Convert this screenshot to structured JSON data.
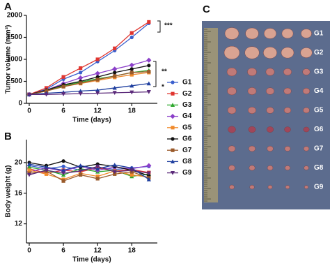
{
  "chart_data": [
    {
      "type": "line",
      "panel": "A",
      "xlabel": "Time (days)",
      "ylabel": "Tumor volume (mm³)",
      "x": [
        0,
        3,
        6,
        9,
        12,
        15,
        18,
        21
      ],
      "xlim": [
        0,
        22
      ],
      "xticks": [
        0,
        6,
        12,
        18
      ],
      "ylim": [
        0,
        2000
      ],
      "yticks": [
        0,
        500,
        1000,
        1500,
        2000
      ],
      "legend": "right",
      "annotations": [
        "***",
        "**",
        "*"
      ],
      "series": [
        {
          "name": "G1",
          "color": "#3a5fcd",
          "marker": "circle",
          "values": [
            200,
            320,
            550,
            700,
            950,
            1200,
            1500,
            1820
          ]
        },
        {
          "name": "G2",
          "color": "#e0352f",
          "marker": "square",
          "values": [
            200,
            350,
            600,
            800,
            1000,
            1250,
            1600,
            1850
          ]
        },
        {
          "name": "G3",
          "color": "#2ea82e",
          "marker": "triangle",
          "values": [
            200,
            280,
            400,
            480,
            560,
            620,
            700,
            750
          ]
        },
        {
          "name": "G4",
          "color": "#8b3fc9",
          "marker": "diamond",
          "values": [
            200,
            300,
            450,
            580,
            680,
            780,
            870,
            980
          ]
        },
        {
          "name": "G5",
          "color": "#f08a2c",
          "marker": "square",
          "values": [
            200,
            280,
            380,
            450,
            520,
            590,
            650,
            700
          ]
        },
        {
          "name": "G6",
          "color": "#111111",
          "marker": "circle",
          "values": [
            200,
            300,
            420,
            500,
            600,
            700,
            780,
            860
          ]
        },
        {
          "name": "G7",
          "color": "#9a5a2a",
          "marker": "square",
          "values": [
            200,
            280,
            380,
            460,
            540,
            620,
            700,
            720
          ]
        },
        {
          "name": "G8",
          "color": "#1f3f9f",
          "marker": "triangle",
          "values": [
            200,
            230,
            250,
            280,
            300,
            350,
            400,
            450
          ]
        },
        {
          "name": "G9",
          "color": "#5b2a7a",
          "marker": "triangle-down",
          "values": [
            200,
            200,
            210,
            220,
            230,
            240,
            250,
            260
          ]
        }
      ]
    },
    {
      "type": "line",
      "panel": "B",
      "xlabel": "Time (days)",
      "ylabel": "Body weight (g)",
      "x": [
        0,
        3,
        6,
        9,
        12,
        15,
        18,
        21
      ],
      "xlim": [
        0,
        22
      ],
      "xticks": [
        0,
        6,
        12,
        18
      ],
      "ylim": [
        9.5,
        23
      ],
      "yticks": [
        12,
        16,
        20
      ],
      "series": [
        {
          "color": "#3a5fcd",
          "marker": "circle",
          "values": [
            19.6,
            19.2,
            19.5,
            19.0,
            19.4,
            19.1,
            19.3,
            19.5
          ]
        },
        {
          "color": "#e0352f",
          "marker": "square",
          "values": [
            19.2,
            18.6,
            19.0,
            18.8,
            19.3,
            18.9,
            19.1,
            18.7
          ]
        },
        {
          "color": "#2ea82e",
          "marker": "triangle",
          "values": [
            19.4,
            19.0,
            18.4,
            19.2,
            18.8,
            19.0,
            18.2,
            18.5
          ]
        },
        {
          "color": "#8b3fc9",
          "marker": "diamond",
          "values": [
            18.8,
            19.3,
            18.9,
            19.5,
            19.0,
            19.4,
            19.2,
            19.6
          ]
        },
        {
          "color": "#f08a2c",
          "marker": "square",
          "values": [
            19.0,
            18.5,
            17.8,
            18.6,
            18.2,
            18.9,
            18.4,
            18.1
          ]
        },
        {
          "color": "#111111",
          "marker": "circle",
          "values": [
            20.0,
            19.6,
            20.2,
            19.4,
            19.8,
            19.5,
            19.0,
            18.3
          ]
        },
        {
          "color": "#9a5a2a",
          "marker": "square",
          "values": [
            18.6,
            18.9,
            17.6,
            18.4,
            17.9,
            18.5,
            18.8,
            18.0
          ]
        },
        {
          "color": "#1f3f9f",
          "marker": "triangle",
          "values": [
            19.8,
            19.4,
            19.0,
            19.6,
            19.2,
            19.7,
            19.3,
            17.8
          ]
        },
        {
          "color": "#5b2a7a",
          "marker": "triangle-down",
          "values": [
            18.4,
            19.0,
            18.6,
            18.9,
            19.5,
            18.8,
            19.0,
            18.6
          ]
        }
      ]
    }
  ],
  "photo": {
    "panel": "C",
    "labels": [
      "G1",
      "G2",
      "G3",
      "G4",
      "G5",
      "G6",
      "G7",
      "G8",
      "G9"
    ]
  }
}
